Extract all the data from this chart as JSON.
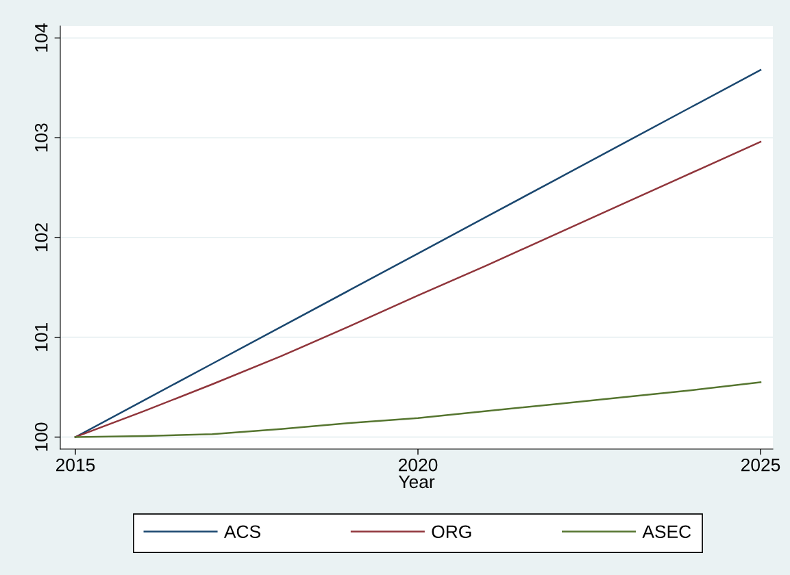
{
  "chart_data": {
    "type": "line",
    "xlabel": "Year",
    "x": [
      2015,
      2016,
      2017,
      2018,
      2019,
      2020,
      2021,
      2022,
      2023,
      2024,
      2025
    ],
    "series": [
      {
        "name": "ACS",
        "color": "#1a476f",
        "values": [
          100,
          100.368,
          100.736,
          101.104,
          101.472,
          101.84,
          102.208,
          102.576,
          102.944,
          103.312,
          103.68
        ]
      },
      {
        "name": "ORG",
        "color": "#90353b",
        "values": [
          100,
          100.26,
          100.53,
          100.81,
          101.11,
          101.42,
          101.72,
          102.03,
          102.34,
          102.65,
          102.96
        ]
      },
      {
        "name": "ASEC",
        "color": "#55752f",
        "values": [
          100,
          100.01,
          100.03,
          100.08,
          100.14,
          100.19,
          100.26,
          100.33,
          100.4,
          100.47,
          100.55
        ]
      }
    ],
    "xlim": [
      2014.78,
      2025.18
    ],
    "ylim": [
      99.88,
      104.12
    ],
    "xticks": [
      2015,
      2020,
      2025
    ],
    "yticks": [
      100,
      101,
      102,
      103,
      104
    ],
    "grid": "y",
    "legend": "bottom",
    "marker": "none",
    "line_style": "solid"
  }
}
